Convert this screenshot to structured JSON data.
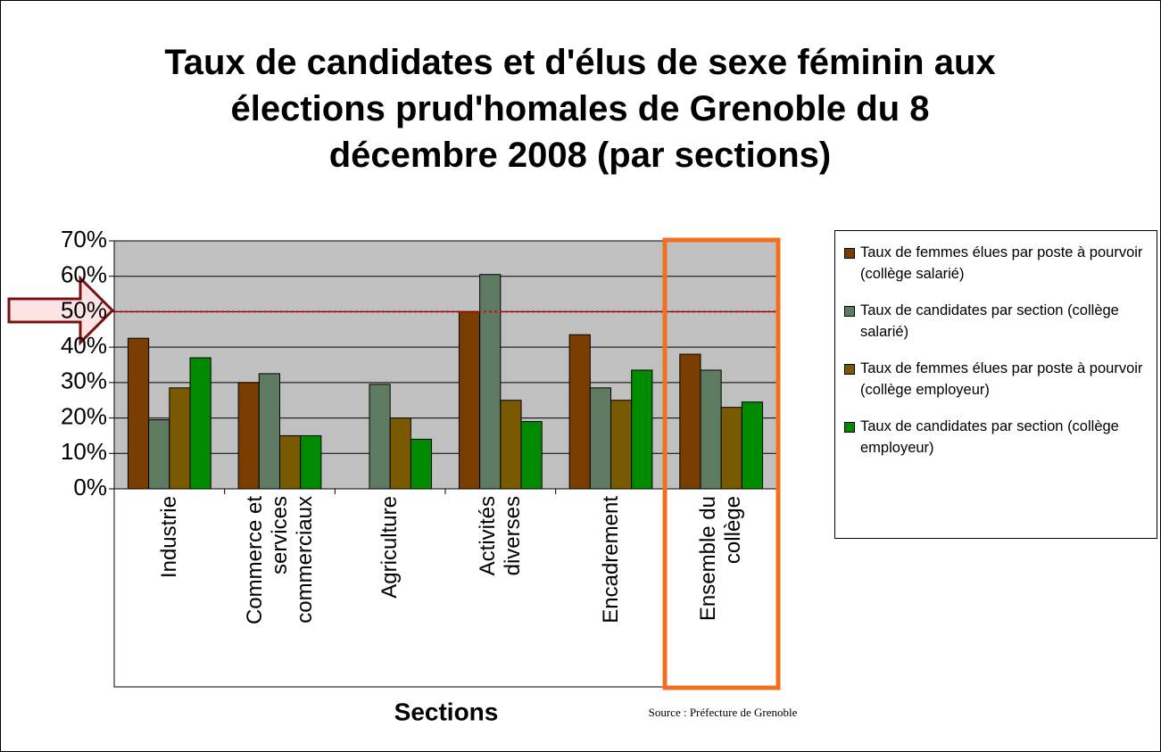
{
  "chart_data": {
    "type": "bar",
    "title": "Taux de candidates et d'élus de sexe féminin aux\nélections prud'homales de Grenoble du 8\ndécembre 2008 (par sections)",
    "x_label": "Sections",
    "source": "Source : Préfecture de Grenoble",
    "categories": [
      "Industrie",
      "Commerce et\nservices\ncommerciaux",
      "Agriculture",
      "Activités\ndiverses",
      "Encadrement",
      "Ensemble du\ncollège"
    ],
    "series": [
      {
        "name": "Taux de femmes élues par poste à pourvoir (collège salarié)",
        "color": "#7a3d00",
        "values": [
          42.5,
          30,
          null,
          50,
          43.5,
          38
        ]
      },
      {
        "name": "Taux de candidates par section (collège salarié)",
        "color": "#5e7a60",
        "values": [
          19.5,
          32.5,
          29.5,
          60.5,
          28.5,
          33.5
        ]
      },
      {
        "name": "Taux de femmes élues par poste à pourvoir (collège employeur)",
        "color": "#7a5a00",
        "values": [
          28.5,
          15,
          20,
          25,
          25,
          23
        ]
      },
      {
        "name": "Taux de candidates par section (collège employeur)",
        "color": "#008a00",
        "values": [
          37,
          15,
          14,
          19,
          33.5,
          24.5
        ]
      }
    ],
    "ylim": [
      0,
      70
    ],
    "yticks": [
      {
        "value": 0,
        "label": "0%"
      },
      {
        "value": 10,
        "label": "10%"
      },
      {
        "value": 20,
        "label": "20%"
      },
      {
        "value": 30,
        "label": "30%"
      },
      {
        "value": 40,
        "label": "40%"
      },
      {
        "value": 50,
        "label": "50%"
      },
      {
        "value": 60,
        "label": "60%"
      },
      {
        "value": 70,
        "label": "70%"
      }
    ],
    "grid": true,
    "reference_line": 50,
    "legend": "right"
  }
}
